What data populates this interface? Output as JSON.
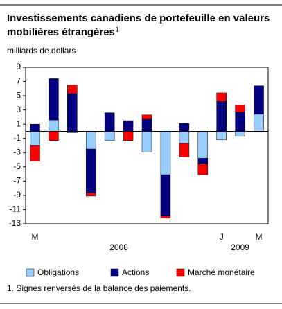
{
  "chart_data": {
    "type": "stacked-bar",
    "title_lines": [
      "Investissements canadiens de portefeuille en valeurs",
      "mobilières étrangères"
    ],
    "title_note": "1",
    "y_label": "milliards de dollars",
    "categories": [
      "M",
      null,
      null,
      null,
      null,
      null,
      null,
      null,
      null,
      null,
      "J",
      null,
      "M"
    ],
    "year_labels": [
      "2008",
      "2009"
    ],
    "series": [
      {
        "name": "Obligations",
        "color": "#99ccff",
        "values": [
          -2,
          1.6,
          -0.2,
          -2.5,
          -1.3,
          0,
          -2.9,
          -6.1,
          -1.7,
          -3.8,
          -1.2,
          -0.7,
          2.4
        ]
      },
      {
        "name": "Actions",
        "color": "#000080",
        "values": [
          1,
          5.8,
          5.3,
          -6.2,
          2.6,
          1.5,
          1.7,
          -5.8,
          1.1,
          -0.8,
          4.2,
          2.7,
          4
        ]
      },
      {
        "name": "Marché monétaire",
        "color": "#ff0000",
        "values": [
          -2.2,
          -1.3,
          1.2,
          -0.4,
          0,
          -1.3,
          0.6,
          -0.3,
          -1.9,
          -1.5,
          1.2,
          1,
          0
        ]
      }
    ],
    "ylim": [
      -13,
      9
    ],
    "yticks": [
      9,
      7,
      5,
      3,
      1,
      -1,
      -3,
      -5,
      -7,
      -9,
      -11,
      -13
    ],
    "footnote": "1. Signes renversés de la balance des paiements."
  }
}
